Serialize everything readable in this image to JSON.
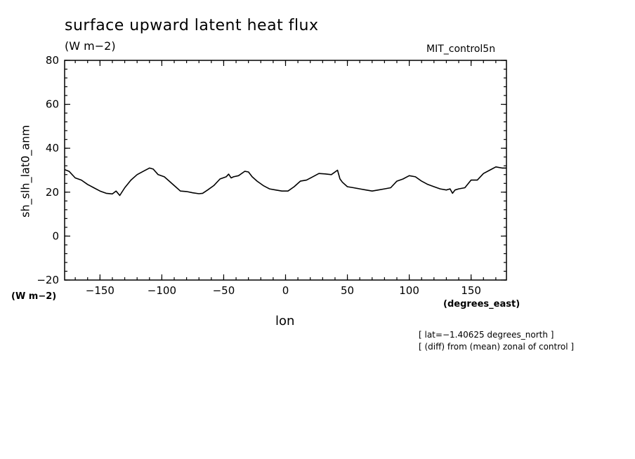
{
  "chart_data": {
    "type": "line",
    "title": "surface upward latent heat flux",
    "units_label": "(W m−2)",
    "run_label": "MIT_control5n",
    "xlabel": "lon",
    "x_units": "(degrees_east)",
    "ylabel": "sh_slh_lat0_anm",
    "y_units": "(W m−2)",
    "xlim": [
      -178.59375,
      178.59375
    ],
    "ylim": [
      -20,
      80
    ],
    "xticks": [
      -150,
      -100,
      -50,
      0,
      50,
      100,
      150
    ],
    "xtick_labels": [
      "−150",
      "−100",
      "−50",
      "0",
      "50",
      "100",
      "150"
    ],
    "yticks": [
      -20,
      0,
      20,
      40,
      60,
      80
    ],
    "ytick_labels": [
      "−20",
      "0",
      "20",
      "40",
      "60",
      "80"
    ],
    "notes": [
      "[ lat=−1.40625 degrees_north ]",
      "[ (diff) from (mean) zonal of control ]"
    ],
    "x": [
      -178.6,
      -175,
      -170,
      -165,
      -160,
      -155,
      -150,
      -145,
      -140,
      -137,
      -134,
      -130,
      -125,
      -120,
      -115,
      -110,
      -107,
      -103,
      -98,
      -94,
      -90,
      -85,
      -80,
      -75,
      -70,
      -67,
      -63,
      -58,
      -53,
      -48,
      -46,
      -44,
      -42,
      -38,
      -33,
      -30,
      -27,
      -23,
      -18,
      -13,
      -8,
      -3,
      2,
      7,
      12,
      17,
      22,
      27,
      32,
      37,
      42,
      44,
      46,
      50,
      55,
      60,
      65,
      70,
      75,
      80,
      85,
      90,
      95,
      100,
      105,
      110,
      115,
      120,
      125,
      130,
      133,
      135,
      137,
      140,
      145,
      150,
      155,
      160,
      165,
      170,
      175,
      178.6
    ],
    "y": [
      30.3,
      29.5,
      26.5,
      25.5,
      23.5,
      22,
      20.5,
      19.5,
      19.2,
      20.5,
      18.5,
      22,
      25.5,
      28,
      29.5,
      31,
      30.5,
      28,
      27,
      25,
      23,
      20.5,
      20.3,
      19.7,
      19.3,
      19.5,
      21,
      23,
      26,
      27,
      28.2,
      26.5,
      27,
      27.5,
      29.5,
      29.2,
      27,
      25,
      23,
      21.5,
      21,
      20.5,
      20.5,
      22.5,
      25,
      25.5,
      27,
      28.5,
      28.3,
      28,
      30,
      26,
      24.5,
      22.5,
      22,
      21.5,
      21,
      20.5,
      21,
      21.5,
      22,
      25,
      26,
      27.5,
      27,
      25,
      23.5,
      22.5,
      21.5,
      21,
      21.5,
      19.5,
      21,
      21.5,
      22,
      25.5,
      25.5,
      28.5,
      30,
      31.5,
      31,
      31
    ]
  }
}
